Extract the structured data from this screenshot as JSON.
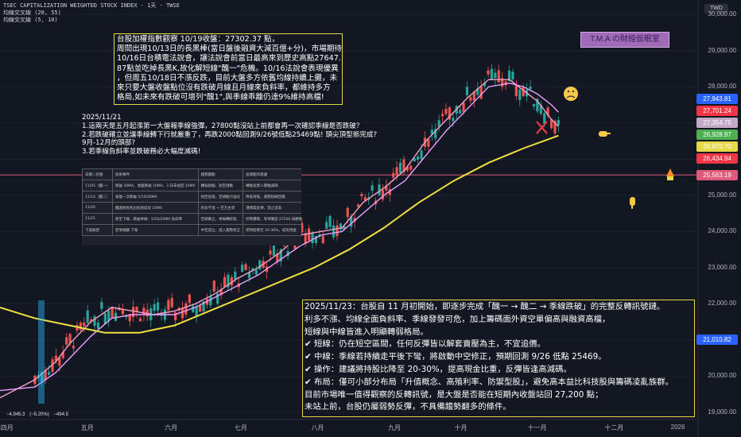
{
  "header": {
    "line1": "TSEC CAPITALIZATION WEIGHTED STOCK INDEX · 1天 · TWSE",
    "line2": "均線交叉線 (20, 55)",
    "line3": "均線交叉線 (5, 10)"
  },
  "currency": "TWD",
  "brand": "T.M.A の財經仮眠室",
  "note_top": {
    "lines": [
      "台股加權指數觀察 10/19收盤：27302.37 點，",
      "周間出現10/13日的長黑棒(當日盤後融資大減百億+分)，市場期待",
      "10/16日台積電法說會，讓法說會前當日最高來到歷史高點27647.",
      "87點並吃掉長黑K,故化解短線\"醜一\"危機。10/16法說會表現優異",
      "，但周五10/18日不漲反跌，目前大盤多方依舊均線持續上攤，未",
      "來只要大盤收盤點位沒有跌破月線且月線來負斜率，都維持多方",
      "格局,如未來有跌破可增列\"醜1\",與季線乖離仍達9%維持高檔!"
    ]
  },
  "note_mid": {
    "lines": [
      "2025/11/21",
      "1.這兩天是五月起漲第一大盤報季線強彈，27800點沒站上前都會再一次確認季線是否跌破？",
      "2.若跌破確立並讓季線轉下行就嚴重了，再跌2000點回測9/26號低點25469點!   頭尖頂型態完成?",
      "9月-12月的頭部?",
      "3.若季線負斜率並跌破務必大幅度減碼!"
    ]
  },
  "table": {
    "headers": [
      "日期 / 訊號",
      "技術事件",
      "趨勢變動",
      "投資動作建議"
    ],
    "rows": [
      [
        "11/05（醜一）",
        "跌破 20MA、收盤跌破 10MA、3 日未站回 10MA",
        "轉弱啟動，短空啟動",
        "轉換投資人期軸減碼"
      ],
      [
        "11/14（醜二）",
        "收盤一次跌破 5/10/20MA",
        "短空加速，空頭動力強化",
        "降低持股，避開短線回檔"
      ],
      [
        "11/20",
        "醜連跌長找出技術前段 10MA",
        "利多不漲 → 空方主導",
        "謹慎操反彈，禁止追高"
      ],
      [
        "11/21",
        "跌至下緣，跌破季線：5/10/20MA 負斜率",
        "空頭確立，季線轉折點",
        "控制曝險，等待確認 27200 再觀察"
      ],
      [
        "下週展望",
        "若季線翻 下彎",
        "中空成立，進入趨勢修正",
        "把持股降至 20-30%，提高現金"
      ]
    ]
  },
  "note_bottom": {
    "lines": [
      "2025/11/23：台股自 11 月初開始，即逐步完成「醜一 → 醜二 → 季線跌破」的完整反轉訊號鏈。",
      "利多不漲、均線全面負斜率、季線發發可危，加上籌碼面外資空單偏高與融資高檔，",
      "短線與中線皆進入明顯轉弱格局。",
      "✔ 短線：仍在短空區間，任何反彈皆以解套賣壓為主，不宜追價。",
      "✔ 中線：季線若持續走平後下彎，將啟動中空修正，預期回測 9/26 低點 25469。",
      "✔ 操作：建議將持股比降至 20-30%，提高現金比重，反彈皆逢高減碼。",
      "✔ 布局：僅可小部分布局「升值概念、高殖利率、防禦型股」，避免高本益比科技股與籌碼凌亂族群。",
      "目前市場唯一值得觀察的反轉訊號，是大盤是否能在短期內收盤站回 27,200 點；",
      "未站上前，台股仍屬弱勢反彈，不具備趨勢翻多的條件。"
    ]
  },
  "price_tags": [
    {
      "value": "27,943.81",
      "color": "#2962ff"
    },
    {
      "value": "27,701.24",
      "color": "#f23645"
    },
    {
      "value": "27,354.75",
      "color": "#c4a9c7"
    },
    {
      "value": "26,928.97",
      "color": "#4caf50"
    },
    {
      "value": "26,670.70",
      "color": "#e6d84a"
    },
    {
      "value": "26,434.94",
      "color": "#f23645"
    },
    {
      "value": "25,563.19",
      "color": "#e05a7a"
    },
    {
      "value": "21,010.82",
      "color": "#2962ff"
    }
  ],
  "bottom_labels": {
    "left": "−4,945.3",
    "mid": "(−5.20%)",
    "right": "−494.5"
  },
  "chart_data": {
    "type": "line",
    "title": "",
    "y_ticks": [
      19000,
      20000,
      21000,
      22000,
      23000,
      24000,
      25000,
      26000,
      27000,
      28000,
      29000,
      30000
    ],
    "y_tick_labels": [
      "19,000.00",
      "20,000.00",
      "21,000.00",
      "22,000.00",
      "23,000.00",
      "24,000.00",
      "25,000.00",
      "26,000.00",
      "27,000.00",
      "28,000.00",
      "29,000.00",
      "30,000.00"
    ],
    "ylim": [
      18800,
      30400
    ],
    "x_ticks": [
      "四月",
      "五月",
      "六月",
      "七月",
      "八月",
      "九月",
      "十月",
      "十一月",
      "十二月",
      "2026"
    ],
    "x_tick_pos": [
      0.01,
      0.125,
      0.245,
      0.345,
      0.455,
      0.565,
      0.66,
      0.765,
      0.875,
      0.97
    ],
    "horizontal_line": 25563.19,
    "series": [
      {
        "role": "ma-short",
        "color": "#f5a0c8",
        "x": [
          0.0,
          0.05,
          0.08,
          0.1,
          0.13,
          0.16,
          0.19,
          0.22,
          0.25,
          0.28,
          0.31,
          0.34,
          0.37,
          0.4,
          0.43,
          0.46,
          0.49,
          0.52,
          0.55,
          0.58,
          0.61,
          0.64,
          0.67,
          0.7,
          0.73,
          0.75,
          0.77,
          0.79,
          0.8
        ],
        "values": [
          19400,
          19900,
          20400,
          20900,
          21500,
          21900,
          21800,
          21700,
          21800,
          22000,
          22300,
          22700,
          23000,
          23400,
          23900,
          24000,
          24100,
          24800,
          25200,
          25700,
          26500,
          27100,
          27700,
          28200,
          28200,
          27900,
          27600,
          27100,
          26900
        ]
      },
      {
        "role": "ma-mid",
        "color": "#e8a0ff",
        "x": [
          0.0,
          0.05,
          0.08,
          0.1,
          0.13,
          0.16,
          0.19,
          0.22,
          0.25,
          0.28,
          0.31,
          0.34,
          0.37,
          0.4,
          0.43,
          0.46,
          0.49,
          0.52,
          0.55,
          0.58,
          0.61,
          0.64,
          0.67,
          0.7,
          0.73,
          0.75,
          0.77,
          0.79,
          0.8
        ],
        "values": [
          19600,
          19700,
          20100,
          20500,
          21100,
          21600,
          21700,
          21700,
          21700,
          21900,
          22200,
          22500,
          22800,
          23200,
          23600,
          23900,
          24000,
          24500,
          25000,
          25400,
          26100,
          26800,
          27400,
          28000,
          28100,
          28000,
          27800,
          27500,
          27300
        ]
      },
      {
        "role": "ma-quarter",
        "color": "#f0e040",
        "x": [
          0.0,
          0.05,
          0.1,
          0.15,
          0.2,
          0.25,
          0.3,
          0.35,
          0.4,
          0.45,
          0.5,
          0.55,
          0.6,
          0.65,
          0.7,
          0.75,
          0.8
        ],
        "values": [
          21900,
          21600,
          21400,
          21200,
          21200,
          21400,
          21800,
          22200,
          22600,
          23000,
          23500,
          24100,
          24800,
          25400,
          25900,
          26300,
          26650
        ]
      }
    ]
  }
}
